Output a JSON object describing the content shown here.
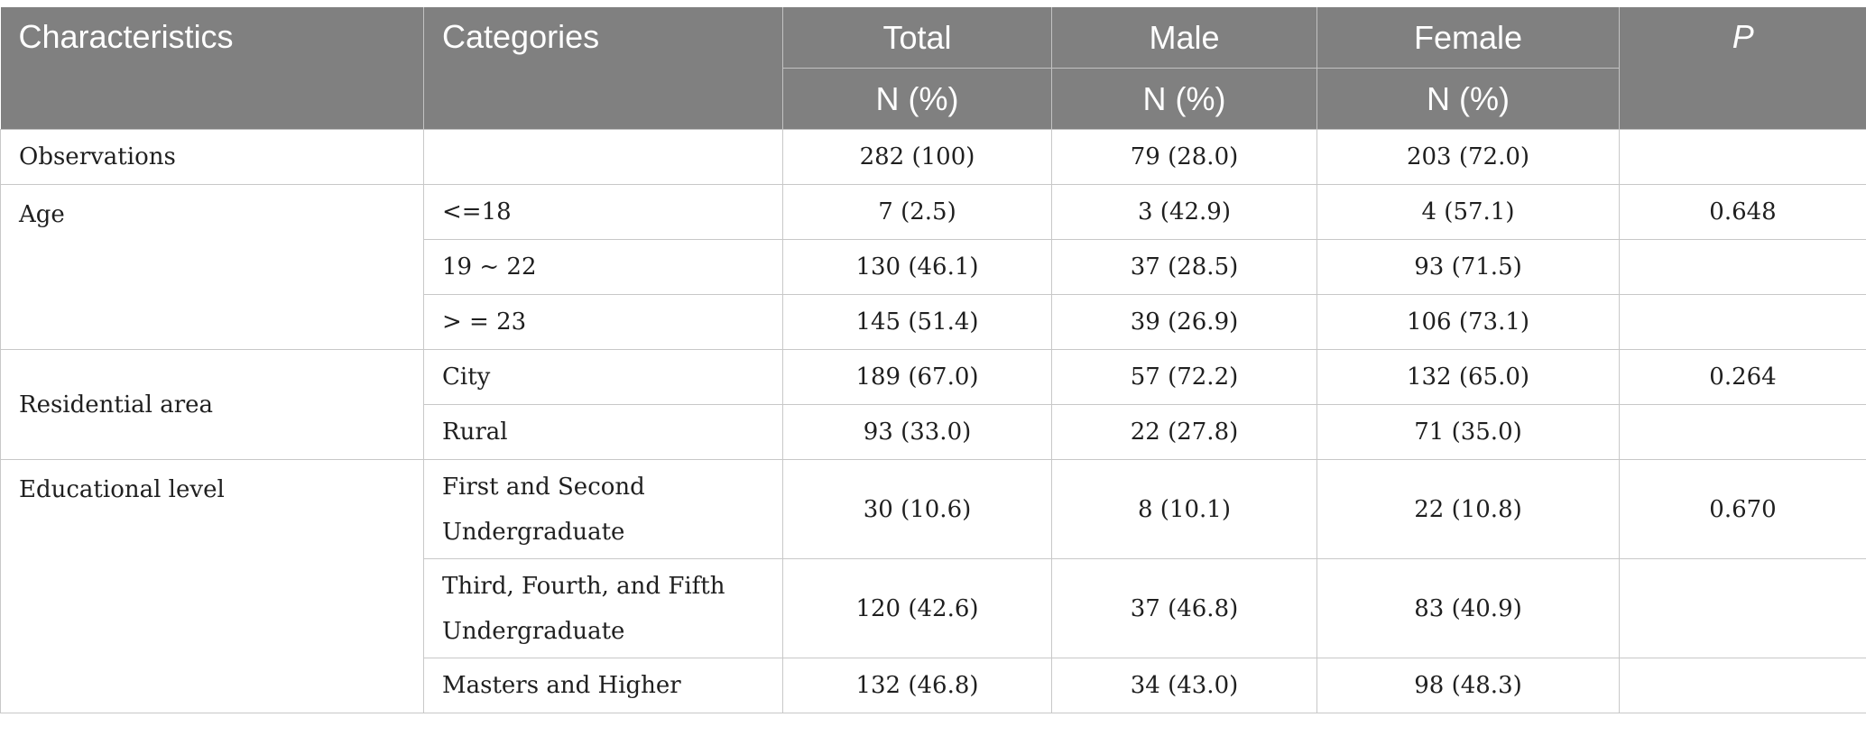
{
  "headers": {
    "characteristics": "Characteristics",
    "categories": "Categories",
    "total": "Total",
    "male": "Male",
    "female": "Female",
    "p": "P",
    "sub_total": "N (%)",
    "sub_male": "N (%)",
    "sub_female": "N (%)"
  },
  "rows": {
    "observations": {
      "label": "Observations",
      "category": "",
      "total": "282 (100)",
      "male": "79 (28.0)",
      "female": "203 (72.0)",
      "p": ""
    },
    "age": {
      "label": "Age",
      "p": "0.648",
      "items": [
        {
          "category": "<=18",
          "total": "7 (2.5)",
          "male": "3 (42.9)",
          "female": "4 (57.1)"
        },
        {
          "category": "19 ~ 22",
          "total": "130 (46.1)",
          "male": "37 (28.5)",
          "female": "93 (71.5)"
        },
        {
          "category": "> = 23",
          "total": "145 (51.4)",
          "male": "39 (26.9)",
          "female": "106 (73.1)"
        }
      ]
    },
    "residential": {
      "label": "Residential area",
      "p": "0.264",
      "items": [
        {
          "category": "City",
          "total": "189 (67.0)",
          "male": "57 (72.2)",
          "female": "132 (65.0)"
        },
        {
          "category": "Rural",
          "total": "93 (33.0)",
          "male": "22 (27.8)",
          "female": "71 (35.0)"
        }
      ]
    },
    "education": {
      "label": "Educational level",
      "p": "0.670",
      "items": [
        {
          "category_line1": "First and Second",
          "category_line2": "Undergraduate",
          "total": "30 (10.6)",
          "male": "8 (10.1)",
          "female": "22 (10.8)"
        },
        {
          "category_line1": "Third, Fourth, and Fifth",
          "category_line2": "Undergraduate",
          "total": "120 (42.6)",
          "male": "37 (46.8)",
          "female": "83 (40.9)"
        },
        {
          "category": "Masters and Higher",
          "total": "132 (46.8)",
          "male": "34 (43.0)",
          "female": "98 (48.3)"
        }
      ]
    }
  }
}
